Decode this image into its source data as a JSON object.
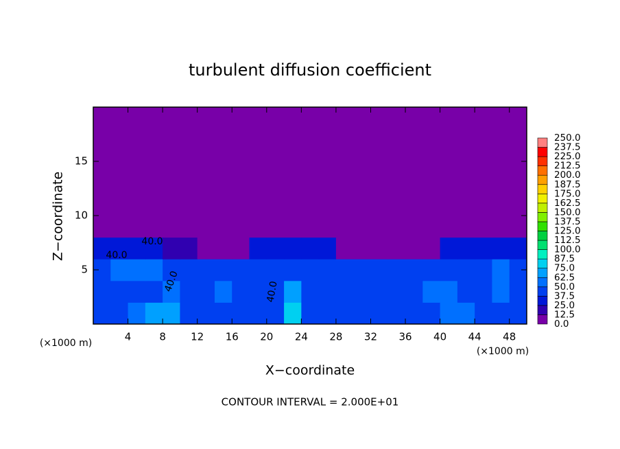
{
  "chart_data": {
    "type": "heatmap",
    "title": "turbulent diffusion coefficient",
    "x_label": "X−coordinate",
    "y_label": "Z−coordinate",
    "x_unit": "(×1000 m)",
    "y_unit": "(×1000 m)",
    "footer": "CONTOUR INTERVAL = 2.000E+01",
    "xlim": [
      0,
      50
    ],
    "ylim": [
      0,
      20
    ],
    "xticks": [
      4,
      8,
      12,
      16,
      20,
      24,
      28,
      32,
      36,
      40,
      44,
      48
    ],
    "yticks": [
      5,
      10,
      15
    ],
    "contour_labels": [
      "40.0",
      "40.0",
      "40.0",
      "40.0"
    ],
    "colorbar": {
      "levels": [
        {
          "value": 0,
          "label": "0.0"
        },
        12.5,
        {
          "value": 25,
          "label": "25.0"
        },
        37.5,
        {
          "value": 50,
          "label": "50.0"
        },
        62.5,
        {
          "value": 75,
          "label": "75.0"
        },
        87.5,
        {
          "value": 100,
          "label": "100.0"
        },
        112.5,
        {
          "value": 125,
          "label": "125.0"
        },
        137.5,
        {
          "value": 150,
          "label": "150.0"
        },
        162.5,
        {
          "value": 175,
          "label": "175.0"
        },
        187.5,
        {
          "value": 200,
          "label": "200.0"
        },
        212.5,
        {
          "value": 225,
          "label": "225.0"
        },
        237.5,
        {
          "value": 250,
          "label": "250.0"
        }
      ],
      "colors": [
        "#7800a8",
        "#3000b0",
        "#0018d8",
        "#0040f0",
        "#0070ff",
        "#00a0ff",
        "#00d0f0",
        "#00f0c0",
        "#00e070",
        "#00d040",
        "#30e000",
        "#80f000",
        "#c0f000",
        "#f0f000",
        "#ffd000",
        "#ffa000",
        "#ff7000",
        "#ff3000",
        "#ff0000",
        "#ff8080"
      ]
    },
    "field": {
      "x_edges": [
        0,
        2,
        4,
        6,
        8,
        10,
        12,
        14,
        16,
        18,
        20,
        22,
        24,
        26,
        28,
        30,
        32,
        34,
        36,
        38,
        40,
        42,
        44,
        46,
        48,
        50
      ],
      "z_edges": [
        0,
        2,
        4,
        6,
        8,
        10,
        20
      ],
      "values": [
        [
          45,
          45,
          60,
          70,
          65,
          45,
          45,
          45,
          45,
          45,
          45,
          80,
          45,
          45,
          45,
          45,
          45,
          45,
          45,
          45,
          60,
          60,
          45,
          45,
          45
        ],
        [
          40,
          40,
          45,
          45,
          55,
          40,
          40,
          60,
          40,
          40,
          40,
          70,
          40,
          40,
          40,
          40,
          40,
          40,
          40,
          55,
          55,
          40,
          40,
          55,
          40
        ],
        [
          40,
          50,
          50,
          50,
          40,
          40,
          40,
          40,
          40,
          40,
          40,
          40,
          40,
          40,
          40,
          40,
          40,
          40,
          40,
          40,
          40,
          40,
          40,
          50,
          40
        ],
        [
          35,
          35,
          35,
          35,
          20,
          20,
          10,
          5,
          0,
          35,
          35,
          35,
          35,
          35,
          10,
          10,
          10,
          5,
          5,
          5,
          30,
          30,
          30,
          30,
          30
        ],
        [
          0,
          0,
          5,
          0,
          0,
          0,
          0,
          0,
          0,
          0,
          10,
          10,
          0,
          0,
          0,
          0,
          0,
          0,
          0,
          0,
          0,
          0,
          0,
          0,
          0
        ],
        [
          0,
          0,
          0,
          0,
          0,
          0,
          0,
          0,
          0,
          0,
          0,
          0,
          0,
          0,
          0,
          0,
          0,
          0,
          0,
          0,
          0,
          0,
          0,
          0,
          0
        ]
      ]
    }
  }
}
